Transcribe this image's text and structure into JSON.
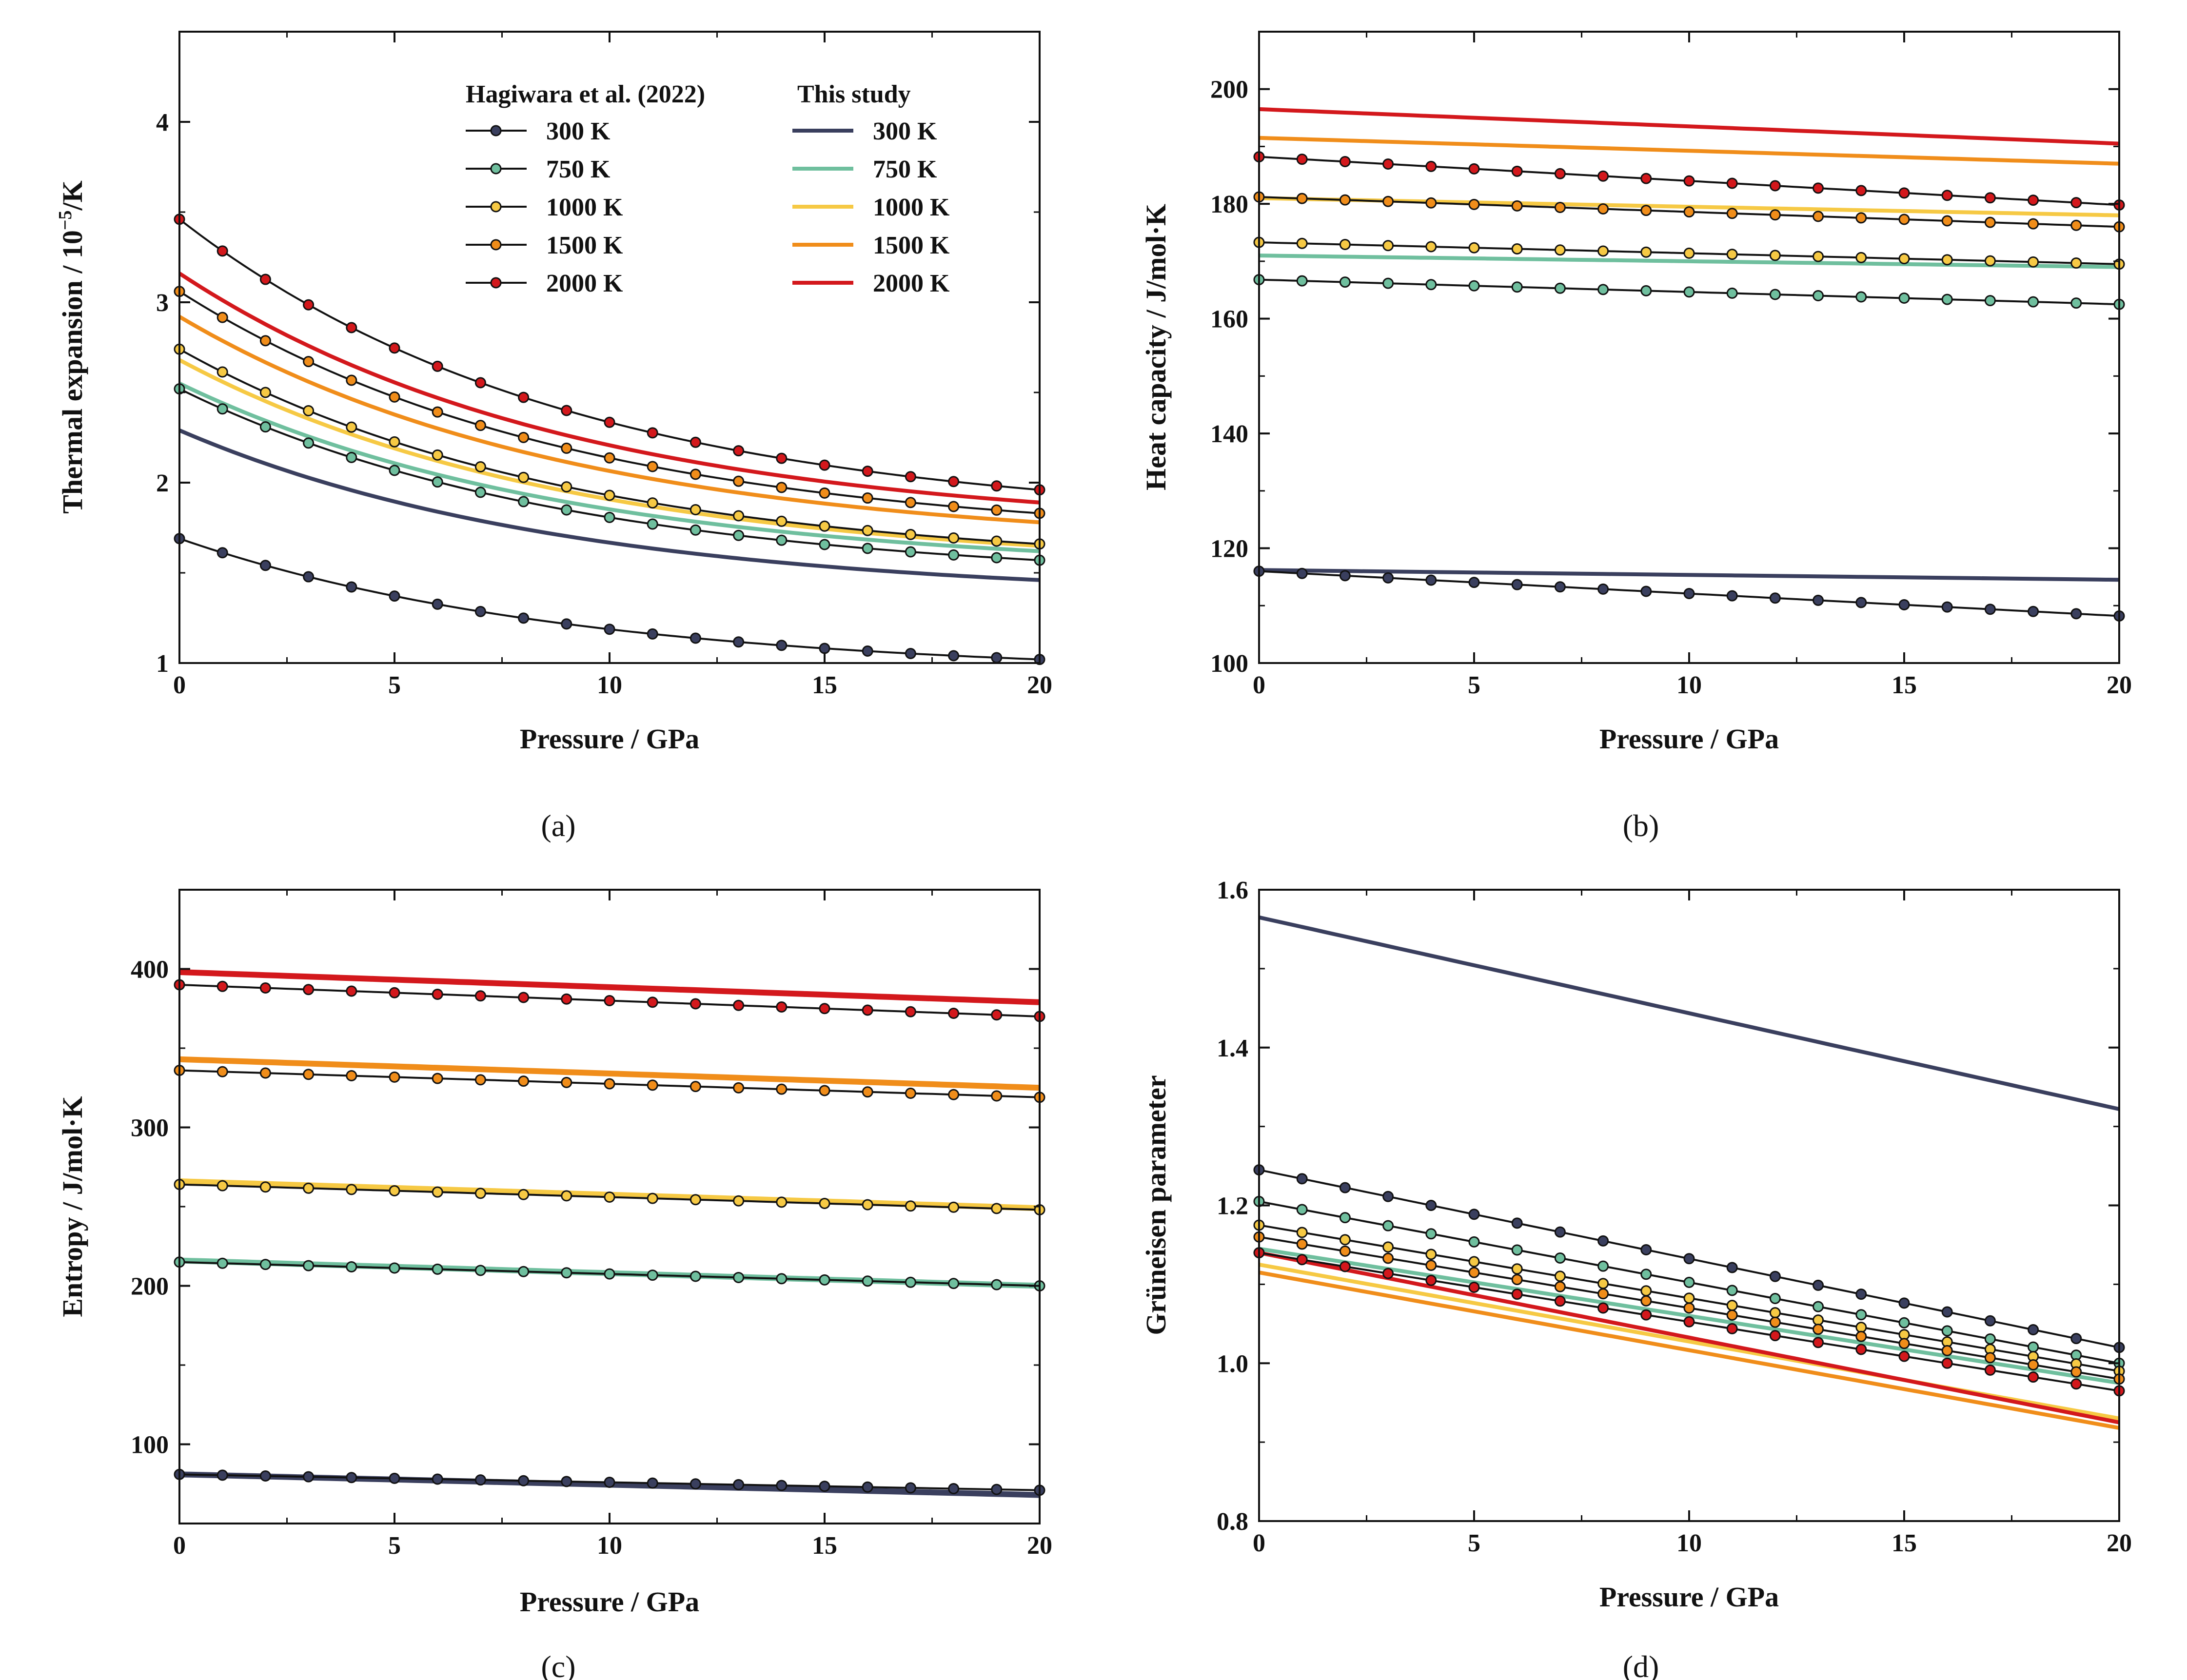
{
  "colors": {
    "300 K": "#3a3f5e",
    "750 K": "#6fbf9e",
    "1000 K": "#f6c944",
    "1500 K": "#f08d1a",
    "2000 K": "#d3181c",
    "marker_line": "#111111"
  },
  "legend": {
    "hag_title": "Hagiwara et al. (2022)",
    "study_title": "This study",
    "labels": [
      "300 K",
      "750 K",
      "1000 K",
      "1500 K",
      "2000 K"
    ]
  },
  "chart_data": [
    {
      "id": "a",
      "caption": "(a)",
      "type": "line",
      "xlabel": "Pressure / GPa",
      "ylabel": "Thermal expansion / 10",
      "ylabel_sup": "−5",
      "ylabel_tail": "/K",
      "xlim": [
        0,
        20
      ],
      "ylim": [
        1,
        4.5
      ],
      "xticks": [
        "0",
        "5",
        "10",
        "15",
        "20"
      ],
      "yticks": [
        "1",
        "2",
        "3",
        "4"
      ],
      "xtick_values": [
        0,
        5,
        10,
        15,
        20
      ],
      "ytick_values": [
        1,
        2,
        3,
        4
      ],
      "study": [
        {
          "name": "300 K",
          "start": 2.29,
          "end": 1.46,
          "curve": "exp"
        },
        {
          "name": "750 K",
          "start": 2.55,
          "end": 1.62,
          "curve": "exp"
        },
        {
          "name": "1000 K",
          "start": 2.68,
          "end": 1.65,
          "curve": "exp"
        },
        {
          "name": "1500 K",
          "start": 2.92,
          "end": 1.78,
          "curve": "exp"
        },
        {
          "name": "2000 K",
          "start": 3.16,
          "end": 1.89,
          "curve": "exp"
        }
      ],
      "hagiwara": [
        {
          "name": "300 K",
          "start": 1.69,
          "end": 1.02,
          "curve": "exp"
        },
        {
          "name": "750 K",
          "start": 2.52,
          "end": 1.57,
          "curve": "exp"
        },
        {
          "name": "1000 K",
          "start": 2.74,
          "end": 1.66,
          "curve": "exp"
        },
        {
          "name": "1500 K",
          "start": 3.06,
          "end": 1.83,
          "curve": "exp"
        },
        {
          "name": "2000 K",
          "start": 3.46,
          "end": 1.96,
          "curve": "exp"
        }
      ]
    },
    {
      "id": "b",
      "caption": "(b)",
      "type": "line",
      "xlabel": "Pressure / GPa",
      "ylabel": "Heat capacity / J/mol·K",
      "xlim": [
        0,
        20
      ],
      "ylim": [
        100,
        210
      ],
      "xticks": [
        "0",
        "5",
        "10",
        "15",
        "20"
      ],
      "yticks": [
        "100",
        "120",
        "140",
        "160",
        "180",
        "200"
      ],
      "xtick_values": [
        0,
        5,
        10,
        15,
        20
      ],
      "ytick_values": [
        100,
        120,
        140,
        160,
        180,
        200
      ],
      "study": [
        {
          "name": "300 K",
          "start": 116.2,
          "end": 114.5,
          "curve": "linear"
        },
        {
          "name": "750 K",
          "start": 171.0,
          "end": 169.0,
          "curve": "linear"
        },
        {
          "name": "1000 K",
          "start": 181.0,
          "end": 178.0,
          "curve": "linear"
        },
        {
          "name": "1500 K",
          "start": 191.5,
          "end": 187.0,
          "curve": "linear"
        },
        {
          "name": "2000 K",
          "start": 196.5,
          "end": 190.5,
          "curve": "linear"
        }
      ],
      "hagiwara": [
        {
          "name": "300 K",
          "start": 116.0,
          "end": 108.2,
          "curve": "linear"
        },
        {
          "name": "750 K",
          "start": 166.8,
          "end": 162.5,
          "curve": "linear"
        },
        {
          "name": "1000 K",
          "start": 173.3,
          "end": 169.5,
          "curve": "linear"
        },
        {
          "name": "1500 K",
          "start": 181.2,
          "end": 176.0,
          "curve": "linear"
        },
        {
          "name": "2000 K",
          "start": 188.2,
          "end": 179.8,
          "curve": "linear"
        }
      ]
    },
    {
      "id": "c",
      "caption": "(c)",
      "type": "line",
      "xlabel": "Pressure / GPa",
      "ylabel": "Entropy / J/mol·K",
      "xlim": [
        0,
        20
      ],
      "ylim": [
        50,
        450
      ],
      "xticks": [
        "0",
        "5",
        "10",
        "15",
        "20"
      ],
      "yticks": [
        "100",
        "200",
        "300",
        "400"
      ],
      "xtick_values": [
        0,
        5,
        10,
        15,
        20
      ],
      "ytick_values": [
        100,
        200,
        300,
        400
      ],
      "study": [
        {
          "name": "300 K",
          "start": 81,
          "end": 68,
          "curve": "linear"
        },
        {
          "name": "750 K",
          "start": 216,
          "end": 200,
          "curve": "linear"
        },
        {
          "name": "1000 K",
          "start": 266,
          "end": 249,
          "curve": "linear"
        },
        {
          "name": "1500 K",
          "start": 343,
          "end": 325,
          "curve": "linear"
        },
        {
          "name": "2000 K",
          "start": 398,
          "end": 379,
          "curve": "linear"
        }
      ],
      "hagiwara": [
        {
          "name": "300 K",
          "start": 81,
          "end": 71,
          "curve": "linear"
        },
        {
          "name": "750 K",
          "start": 215,
          "end": 200,
          "curve": "linear"
        },
        {
          "name": "1000 K",
          "start": 264,
          "end": 248,
          "curve": "linear"
        },
        {
          "name": "1500 K",
          "start": 336,
          "end": 319,
          "curve": "linear"
        },
        {
          "name": "2000 K",
          "start": 390,
          "end": 370,
          "curve": "linear"
        }
      ]
    },
    {
      "id": "d",
      "caption": "(d)",
      "type": "line",
      "xlabel": "Pressure / GPa",
      "ylabel": "Grüneisen parameter",
      "xlim": [
        0,
        20
      ],
      "ylim": [
        0.8,
        1.6
      ],
      "xticks": [
        "0",
        "5",
        "10",
        "15",
        "20"
      ],
      "yticks": [
        "0.8",
        "1.0",
        "1.2",
        "1.4",
        "1.6"
      ],
      "xtick_values": [
        0,
        5,
        10,
        15,
        20
      ],
      "ytick_values": [
        0.8,
        1.0,
        1.2,
        1.4,
        1.6
      ],
      "study": [
        {
          "name": "300 K",
          "start": 1.565,
          "end": 1.322,
          "curve": "linear"
        },
        {
          "name": "750 K",
          "start": 1.145,
          "end": 0.975,
          "curve": "linear"
        },
        {
          "name": "1000 K",
          "start": 1.125,
          "end": 0.93,
          "curve": "linear"
        },
        {
          "name": "1500 K",
          "start": 1.115,
          "end": 0.918,
          "curve": "linear"
        },
        {
          "name": "2000 K",
          "start": 1.14,
          "end": 0.925,
          "curve": "linear"
        }
      ],
      "hagiwara": [
        {
          "name": "300 K",
          "start": 1.245,
          "end": 1.02,
          "curve": "linear"
        },
        {
          "name": "750 K",
          "start": 1.205,
          "end": 1.0,
          "curve": "linear"
        },
        {
          "name": "1000 K",
          "start": 1.175,
          "end": 0.99,
          "curve": "linear"
        },
        {
          "name": "1500 K",
          "start": 1.16,
          "end": 0.98,
          "curve": "linear"
        },
        {
          "name": "2000 K",
          "start": 1.14,
          "end": 0.965,
          "curve": "linear"
        }
      ]
    }
  ]
}
